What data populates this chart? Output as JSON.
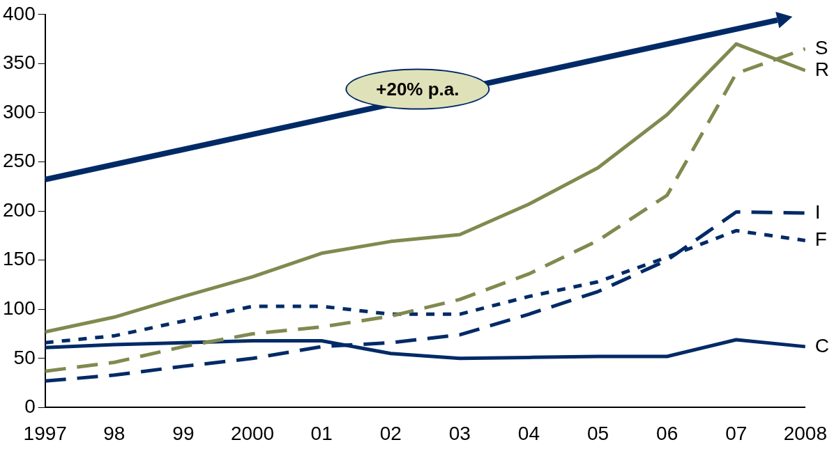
{
  "chart_data": {
    "type": "line",
    "categories": [
      "1997",
      "98",
      "99",
      "2000",
      "01",
      "02",
      "03",
      "04",
      "05",
      "06",
      "07",
      "2008"
    ],
    "ylim": [
      0,
      400
    ],
    "yticks": [
      0,
      50,
      100,
      150,
      200,
      250,
      300,
      350,
      400
    ],
    "grid": false,
    "legend": false,
    "marker": "none",
    "annotations": [
      "+20% p.a."
    ],
    "series": [
      {
        "name": "S",
        "color": "#7f8a4f",
        "line_style": "dashed",
        "values": [
          37,
          46,
          62,
          75,
          82,
          93,
          110,
          136,
          170,
          216,
          340,
          365
        ]
      },
      {
        "name": "R",
        "color": "#7f8a4f",
        "line_style": "solid",
        "values": [
          77,
          92,
          113,
          133,
          157,
          169,
          176,
          207,
          244,
          298,
          370,
          343
        ]
      },
      {
        "name": "I",
        "color": "#002a66",
        "line_style": "dashed",
        "values": [
          27,
          33,
          42,
          50,
          62,
          66,
          74,
          95,
          118,
          150,
          199,
          198
        ]
      },
      {
        "name": "F",
        "color": "#002a66",
        "line_style": "dotted",
        "values": [
          66,
          73,
          88,
          103,
          103,
          95,
          95,
          113,
          128,
          153,
          180,
          170
        ]
      },
      {
        "name": "C",
        "color": "#002a66",
        "line_style": "solid",
        "values": [
          61,
          64,
          66,
          68,
          68,
          55,
          50,
          51,
          52,
          52,
          69,
          62
        ]
      }
    ]
  }
}
